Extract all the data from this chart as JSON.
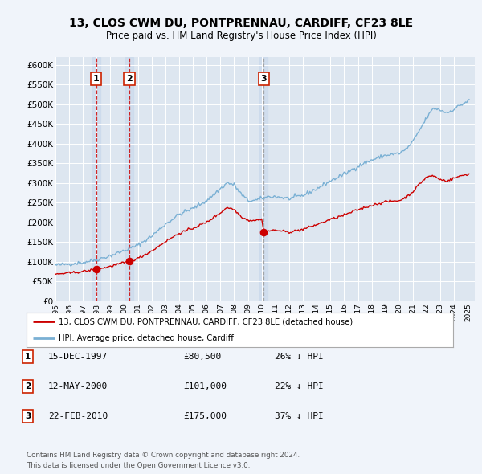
{
  "title1": "13, CLOS CWM DU, PONTPRENNAU, CARDIFF, CF23 8LE",
  "title2": "Price paid vs. HM Land Registry's House Price Index (HPI)",
  "background_color": "#f0f4fa",
  "plot_bg_color": "#dde6f0",
  "ylim": [
    0,
    620000
  ],
  "yticks": [
    0,
    50000,
    100000,
    150000,
    200000,
    250000,
    300000,
    350000,
    400000,
    450000,
    500000,
    550000,
    600000
  ],
  "xlim_start": 1995.0,
  "xlim_end": 2025.5,
  "sales": [
    {
      "date_num": 1997.96,
      "price": 80500,
      "label": "1",
      "vline_color": "#cc0000"
    },
    {
      "date_num": 2000.37,
      "price": 101000,
      "label": "2",
      "vline_color": "#cc0000"
    },
    {
      "date_num": 2010.14,
      "price": 175000,
      "label": "3",
      "vline_color": "#999999"
    }
  ],
  "sale_color": "#cc0000",
  "hpi_color": "#7ab0d4",
  "legend_entries": [
    "13, CLOS CWM DU, PONTPRENNAU, CARDIFF, CF23 8LE (detached house)",
    "HPI: Average price, detached house, Cardiff"
  ],
  "table_rows": [
    {
      "num": "1",
      "date": "15-DEC-1997",
      "price": "£80,500",
      "pct": "26% ↓ HPI"
    },
    {
      "num": "2",
      "date": "12-MAY-2000",
      "price": "£101,000",
      "pct": "22% ↓ HPI"
    },
    {
      "num": "3",
      "date": "22-FEB-2010",
      "price": "£175,000",
      "pct": "37% ↓ HPI"
    }
  ],
  "footnote1": "Contains HM Land Registry data © Crown copyright and database right 2024.",
  "footnote2": "This data is licensed under the Open Government Licence v3.0."
}
